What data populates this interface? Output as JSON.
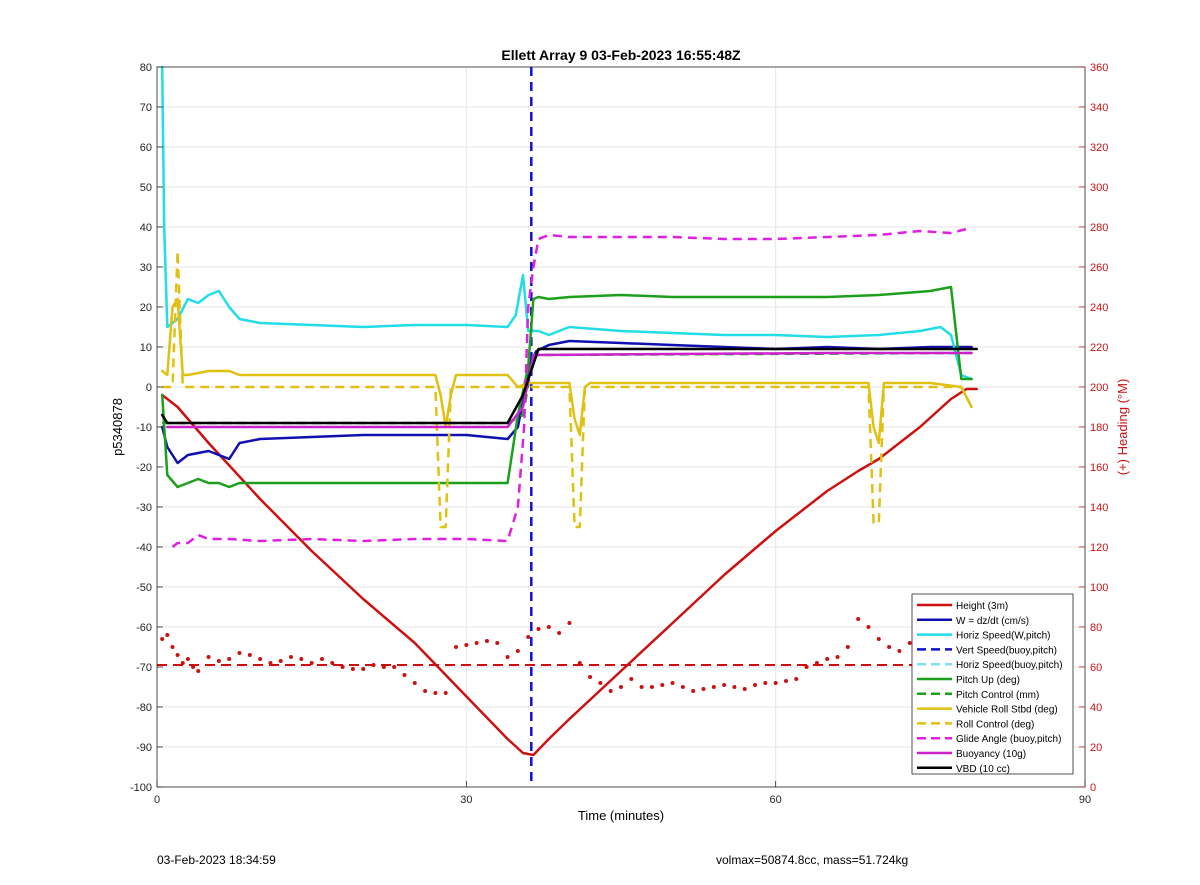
{
  "chart_data": {
    "type": "line",
    "title": "Ellett Array 9 03-Feb-2023 16:55:48Z",
    "xlabel": "Time (minutes)",
    "ylabel": "p5340878",
    "y2label": "(+) Heading (°M)",
    "xlim": [
      0,
      90
    ],
    "ylim": [
      -100,
      80
    ],
    "y2lim": [
      0,
      360
    ],
    "xticks": [
      "0",
      "30",
      "60",
      "90"
    ],
    "yticks": [
      "-100",
      "-90",
      "-80",
      "-70",
      "-60",
      "-50",
      "-40",
      "-30",
      "-20",
      "-10",
      "0",
      "10",
      "20",
      "30",
      "40",
      "50",
      "60",
      "70",
      "80"
    ],
    "y2ticks": [
      "0",
      "20",
      "40",
      "60",
      "80",
      "100",
      "120",
      "140",
      "160",
      "180",
      "200",
      "220",
      "240",
      "260",
      "280",
      "300",
      "320",
      "340",
      "360"
    ],
    "grid": true,
    "legend_position": "bottom-right",
    "series": [
      {
        "name": "Height (3m)",
        "color": "#cc1111",
        "style": "solid",
        "x": [
          0.5,
          2,
          5,
          10,
          15,
          20,
          25,
          28,
          31,
          34,
          35.5,
          36.5,
          38,
          40,
          45,
          50,
          55,
          60,
          65,
          68,
          70,
          74,
          77,
          78.5,
          79.5
        ],
        "y": [
          -2,
          -5,
          -14,
          -28,
          -41,
          -53,
          -64,
          -72,
          -80,
          -88,
          -91.5,
          -92,
          -88,
          -83,
          -71,
          -59,
          -47,
          -36,
          -26,
          -21,
          -18,
          -10,
          -3,
          -0.5,
          -0.5
        ]
      },
      {
        "name": "W = dz/dt (cm/s)",
        "color": "#1010b0",
        "style": "solid",
        "x": [
          0.5,
          1,
          2,
          3,
          5,
          7,
          8,
          10,
          15,
          20,
          25,
          30,
          34,
          35,
          35.6,
          36.2,
          36.8,
          38,
          40,
          45,
          50,
          55,
          60,
          65,
          70,
          75,
          78,
          79
        ],
        "y": [
          -10,
          -15,
          -19,
          -17,
          -16,
          -18,
          -14,
          -13,
          -12.5,
          -12,
          -12,
          -12,
          -13,
          -10,
          -2,
          6,
          9,
          10.5,
          11.5,
          11,
          10.5,
          10,
          9.5,
          10,
          9.5,
          10,
          10,
          10
        ]
      },
      {
        "name": "Horiz Speed(W,pitch)",
        "color": "#22dde8",
        "style": "solid",
        "x": [
          0.5,
          0.7,
          1,
          2,
          3,
          4,
          5,
          6,
          7,
          8,
          10,
          15,
          20,
          25,
          30,
          34,
          34.8,
          35.5,
          36,
          36.5,
          37,
          38,
          40,
          45,
          50,
          55,
          60,
          65,
          70,
          74,
          76,
          77,
          78,
          79
        ],
        "y": [
          80,
          40,
          15,
          17,
          22,
          21,
          23,
          24,
          20,
          17,
          16,
          15.5,
          15,
          15.5,
          15.5,
          15,
          18,
          28,
          14,
          14,
          14,
          13,
          15,
          14,
          13.5,
          13,
          13,
          12.5,
          13,
          14,
          15,
          13,
          3,
          2
        ]
      },
      {
        "name": "Vert Speed(buoy,pitch)",
        "color": "#1212cc",
        "style": "dashed",
        "x": [
          36.3,
          36.3
        ],
        "y": [
          80,
          -100
        ]
      },
      {
        "name": "Horiz Speed(buoy,pitch)",
        "color": "#7fe0ee",
        "style": "dashed",
        "x": [],
        "y": []
      },
      {
        "name": "Pitch Up (deg)",
        "color": "#1ca01c",
        "style": "solid",
        "x": [
          0.5,
          1,
          2,
          3,
          4,
          5,
          6,
          7,
          8,
          10,
          15,
          20,
          25,
          30,
          34,
          35,
          36,
          36.5,
          37,
          38,
          40,
          45,
          50,
          55,
          60,
          65,
          70,
          75,
          77,
          78,
          79
        ],
        "y": [
          -2,
          -22,
          -25,
          -24,
          -23,
          -24,
          -24,
          -25,
          -24,
          -24,
          -24,
          -24,
          -24,
          -24,
          -24,
          -7,
          5,
          22,
          22.5,
          22,
          22.5,
          23,
          22.5,
          22.5,
          22.5,
          22.5,
          23,
          24,
          25,
          2,
          2
        ]
      },
      {
        "name": "Pitch Control (mm)",
        "color": "#1ca01c",
        "style": "dashed",
        "x": [
          0.5,
          34,
          35.5,
          36.5,
          78.5,
          79
        ],
        "y": [
          -9,
          -9,
          -7,
          8,
          8.5,
          8.5
        ]
      },
      {
        "name": "Vehicle Roll Stbd (deg)",
        "color": "#e0c010",
        "style": "solid",
        "x": [
          0.5,
          1,
          1.5,
          2,
          2.5,
          3,
          5,
          7,
          8,
          10,
          15,
          20,
          25,
          27,
          27.5,
          28,
          28.5,
          29,
          30,
          34,
          35,
          36,
          37,
          40,
          40.5,
          41,
          41.5,
          42,
          45,
          50,
          55,
          60,
          65,
          69,
          69.5,
          70,
          70.5,
          71,
          75,
          78,
          79
        ],
        "y": [
          4,
          3,
          20,
          22,
          3,
          3,
          4,
          4,
          3,
          3,
          3,
          3,
          3,
          3,
          -2,
          -10,
          -2,
          3,
          3,
          3,
          0,
          1,
          1,
          1,
          -8,
          -12,
          0,
          1,
          1,
          1,
          1,
          1,
          1,
          1,
          -10,
          -14,
          1,
          1,
          1,
          0,
          -5
        ]
      },
      {
        "name": "Roll Control (deg)",
        "color": "#e0c010",
        "style": "dashed",
        "x": [
          0.5,
          1.5,
          2,
          2.5,
          3,
          27,
          27.5,
          28,
          28.5,
          29,
          40,
          40.5,
          41,
          41.5,
          42,
          69,
          69.5,
          70,
          70.5,
          71,
          78,
          79
        ],
        "y": [
          0,
          0,
          34,
          0,
          0,
          0,
          -35,
          -35,
          0,
          0,
          0,
          -35,
          -35,
          0,
          0,
          0,
          -34,
          -34,
          0,
          0,
          0,
          -5
        ]
      },
      {
        "name": "Glide Angle (buoy,pitch)",
        "color": "#e020e0",
        "style": "dashed",
        "x": [
          1.5,
          2,
          3,
          4,
          5,
          7,
          10,
          15,
          20,
          25,
          30,
          34,
          35,
          35.6,
          36,
          36.5,
          37,
          38,
          40,
          45,
          50,
          55,
          60,
          65,
          70,
          74,
          77,
          78.5
        ],
        "y": [
          -40,
          -39,
          -39,
          -37,
          -38,
          -38,
          -38.5,
          -38,
          -38.5,
          -38,
          -38,
          -38.5,
          -30,
          -10,
          20,
          30,
          37,
          38,
          37.5,
          37.5,
          37.5,
          37,
          37,
          37.5,
          38,
          39,
          38.5,
          39.5
        ]
      },
      {
        "name": "Buoyancy (10g)",
        "color": "#cc22cc",
        "style": "solid",
        "x": [
          1,
          34,
          35.5,
          36.5,
          65,
          70,
          79
        ],
        "y": [
          -10,
          -10,
          -5,
          8,
          8.5,
          8.5,
          8.5
        ]
      },
      {
        "name": "VBD (10 cc)",
        "color": "#000000",
        "style": "solid",
        "x": [
          0.5,
          1,
          34,
          35.5,
          37,
          79.5
        ],
        "y": [
          -7,
          -9,
          -9,
          -2,
          9.5,
          9.5
        ]
      }
    ],
    "heading_points": {
      "axis": "right",
      "color": "#cc1111",
      "x": [
        0.5,
        1,
        1.5,
        2,
        2.5,
        3,
        3.5,
        4,
        5,
        6,
        7,
        8,
        9,
        10,
        11,
        12,
        13,
        14,
        15,
        16,
        17,
        18,
        19,
        20,
        21,
        22,
        23,
        24,
        25,
        26,
        27,
        28,
        29,
        30,
        31,
        32,
        33,
        34,
        35,
        36,
        37,
        38,
        39,
        40,
        41,
        42,
        43,
        44,
        45,
        46,
        47,
        48,
        49,
        50,
        51,
        52,
        53,
        54,
        55,
        56,
        57,
        58,
        59,
        60,
        61,
        62,
        63,
        64,
        65,
        66,
        67,
        68,
        69,
        70,
        71,
        72,
        73,
        74,
        75,
        76,
        77,
        78
      ],
      "y": [
        74,
        76,
        70,
        66,
        62,
        64,
        60,
        58,
        65,
        63,
        64,
        67,
        66,
        64,
        62,
        63,
        65,
        64,
        62,
        64,
        62,
        60,
        59,
        59,
        61,
        60,
        60,
        56,
        52,
        48,
        47,
        47,
        70,
        71,
        72,
        73,
        72,
        65,
        68,
        75,
        79,
        80,
        77,
        82,
        62,
        55,
        52,
        48,
        50,
        54,
        50,
        50,
        51,
        52,
        50,
        48,
        49,
        50,
        51,
        50,
        49,
        51,
        52,
        52,
        53,
        54,
        60,
        62,
        64,
        65,
        70,
        84,
        80,
        74,
        70,
        68,
        72,
        70,
        67,
        70,
        68,
        72
      ]
    },
    "heading_reference": {
      "axis": "right",
      "value": 61,
      "color": "#cc1111",
      "style": "dashed",
      "x": [
        0,
        79
      ]
    }
  },
  "footer": {
    "left": "03-Feb-2023 18:34:59",
    "right": "volmax=50874.8cc, mass=51.724kg"
  }
}
